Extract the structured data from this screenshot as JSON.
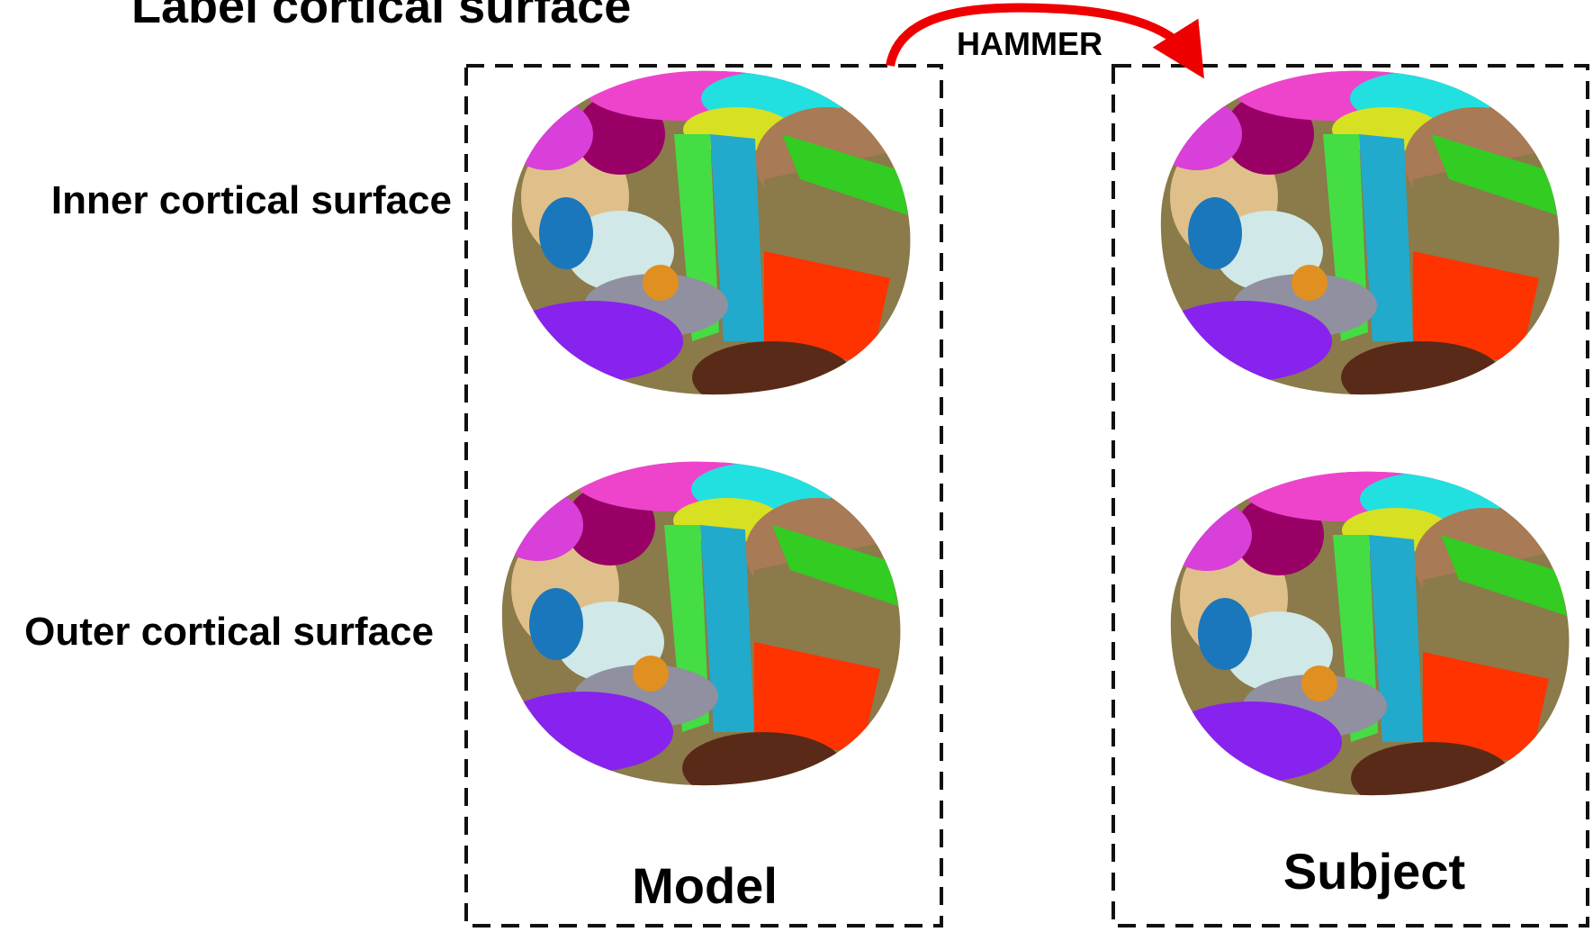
{
  "title": "Label cortical surface",
  "arrow_label": "HAMMER",
  "rows": [
    "Inner cortical surface",
    "Outer cortical surface"
  ],
  "columns": [
    "Model",
    "Subject"
  ]
}
